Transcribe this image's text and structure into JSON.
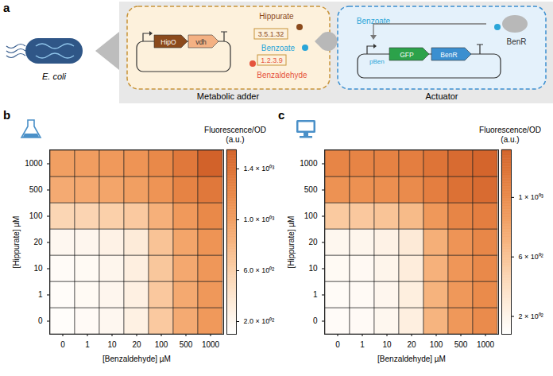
{
  "chart_data": [
    {
      "type": "heatmap",
      "panel_label": "b",
      "x": [
        0,
        1,
        10,
        20,
        100,
        500,
        1000
      ],
      "y": [
        0,
        1,
        10,
        20,
        100,
        500,
        1000
      ],
      "xlabel": "[Benzaldehyde] µM",
      "ylabel": "[Hippurate] µM",
      "values": [
        [
          130,
          160,
          200,
          280,
          650,
          900,
          1050
        ],
        [
          140,
          170,
          210,
          290,
          660,
          910,
          1060
        ],
        [
          150,
          170,
          220,
          300,
          670,
          920,
          1070
        ],
        [
          200,
          210,
          260,
          340,
          700,
          950,
          1100
        ],
        [
          550,
          560,
          600,
          650,
          850,
          1050,
          1200
        ],
        [
          900,
          920,
          950,
          1000,
          1100,
          1250,
          1350
        ],
        [
          1000,
          1020,
          1050,
          1100,
          1200,
          1350,
          1550
        ]
      ],
      "colorbar": {
        "label": "Fluorescence/OD\n(a.u.)",
        "lim": [
          100,
          1550
        ],
        "ticks": [
          {
            "value": 200,
            "label": "2.0 × 10⁰²"
          },
          {
            "value": 600,
            "label": "6.0 × 10⁰²"
          },
          {
            "value": 1000,
            "label": "1.0 × 10⁰³"
          },
          {
            "value": 1400,
            "label": "1.4 × 10⁰³"
          }
        ]
      }
    },
    {
      "type": "heatmap",
      "panel_label": "c",
      "x": [
        0,
        1,
        10,
        20,
        100,
        500,
        1000
      ],
      "y": [
        0,
        1,
        10,
        20,
        100,
        500,
        1000
      ],
      "xlabel": "[Benzaldehyde] µM",
      "ylabel": "[Hippurate] µM",
      "values": [
        [
          120,
          130,
          170,
          250,
          700,
          900,
          1000
        ],
        [
          125,
          135,
          175,
          255,
          705,
          905,
          1005
        ],
        [
          140,
          150,
          190,
          270,
          715,
          915,
          1015
        ],
        [
          170,
          180,
          220,
          300,
          730,
          930,
          1030
        ],
        [
          550,
          560,
          590,
          650,
          900,
          1050,
          1100
        ],
        [
          950,
          955,
          970,
          1000,
          1100,
          1200,
          1250
        ],
        [
          1050,
          1055,
          1070,
          1100,
          1180,
          1250,
          1300
        ]
      ],
      "colorbar": {
        "label": "Fluorescence/OD\n(a.u.)",
        "lim": [
          80,
          1320
        ],
        "ticks": [
          {
            "value": 200,
            "label": "2 × 10⁰²"
          },
          {
            "value": 600,
            "label": "6 × 10⁰²"
          },
          {
            "value": 1000,
            "label": "1 × 10⁰³"
          }
        ]
      }
    }
  ],
  "diagram": {
    "panel_label": "a",
    "organism": "E. coli",
    "adder": {
      "title": "Metabolic adder",
      "genes": [
        "HipO",
        "vdh"
      ],
      "substrate1": "Hippurate",
      "enzyme1": "3.5.1.32",
      "product": "Benzoate",
      "enzyme2": "1.2.3.9",
      "substrate2": "Benzaldehyde"
    },
    "actuator": {
      "title": "Actuator",
      "input": "Benzoate",
      "regulator": "BenR",
      "promoter": "pBen",
      "genes": [
        "GFP",
        "BenR"
      ]
    }
  }
}
